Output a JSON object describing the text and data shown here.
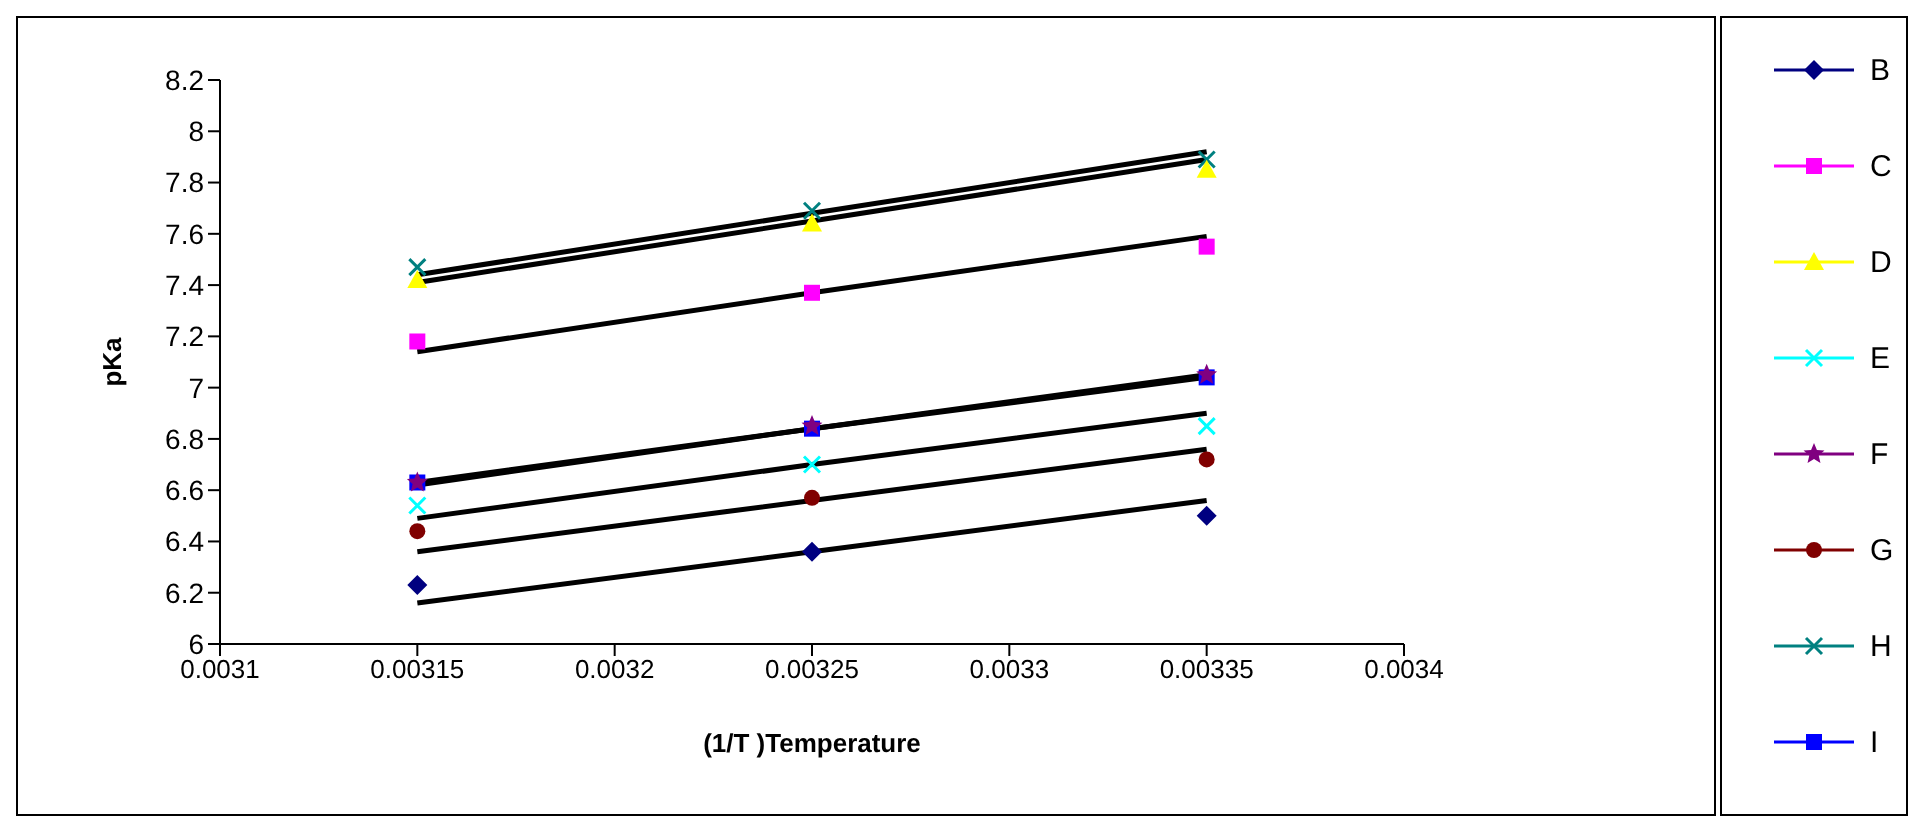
{
  "chart_data": {
    "type": "scatter",
    "xlabel": "(1/T )Temperature",
    "ylabel": "pKa",
    "x": [
      0.00315,
      0.00325,
      0.00335
    ],
    "xlim": [
      0.0031,
      0.0034
    ],
    "xticks": [
      0.0031,
      0.00315,
      0.0032,
      0.00325,
      0.0033,
      0.00335,
      0.0034
    ],
    "ylim": [
      6,
      8.2
    ],
    "yticks": [
      6,
      6.2,
      6.4,
      6.6,
      6.8,
      7,
      7.2,
      7.4,
      7.6,
      7.8,
      8,
      8.2
    ],
    "grid": false,
    "legend": "right",
    "series": [
      {
        "name": "B",
        "color": "#000080",
        "marker": "diamond",
        "values": [
          6.23,
          6.36,
          6.5
        ]
      },
      {
        "name": "C",
        "color": "#ff00ff",
        "marker": "square",
        "values": [
          7.18,
          7.37,
          7.55
        ]
      },
      {
        "name": "D",
        "color": "#ffff00",
        "marker": "triangle",
        "values": [
          7.42,
          7.64,
          7.85
        ]
      },
      {
        "name": "E",
        "color": "#00ffff",
        "marker": "cross",
        "values": [
          6.54,
          6.7,
          6.85
        ]
      },
      {
        "name": "F",
        "color": "#800080",
        "marker": "star",
        "values": [
          6.63,
          6.85,
          7.05
        ]
      },
      {
        "name": "G",
        "color": "#800000",
        "marker": "circle",
        "values": [
          6.44,
          6.57,
          6.72
        ]
      },
      {
        "name": "H",
        "color": "#008080",
        "marker": "cross",
        "values": [
          7.47,
          7.69,
          7.89
        ]
      },
      {
        "name": "I",
        "color": "#0000ff",
        "marker": "square",
        "values": [
          6.63,
          6.84,
          7.04
        ]
      },
      {
        "type": "line",
        "color": "#000000",
        "marker": "none",
        "values": [
          6.16,
          6.36,
          6.56
        ]
      },
      {
        "type": "line",
        "color": "#000000",
        "marker": "none",
        "values": [
          7.14,
          7.37,
          7.59
        ]
      },
      {
        "type": "line",
        "color": "#000000",
        "marker": "none",
        "values": [
          7.41,
          7.65,
          7.89
        ]
      },
      {
        "type": "line",
        "color": "#000000",
        "marker": "none",
        "values": [
          6.49,
          6.7,
          6.9
        ]
      },
      {
        "type": "line",
        "color": "#000000",
        "marker": "none",
        "values": [
          6.62,
          6.84,
          7.05
        ]
      },
      {
        "type": "line",
        "color": "#000000",
        "marker": "none",
        "values": [
          6.36,
          6.56,
          6.76
        ]
      },
      {
        "type": "line",
        "color": "#000000",
        "marker": "none",
        "values": [
          7.44,
          7.68,
          7.92
        ]
      },
      {
        "type": "line",
        "color": "#000000",
        "marker": "none",
        "values": [
          6.63,
          6.84,
          7.04
        ]
      }
    ]
  }
}
